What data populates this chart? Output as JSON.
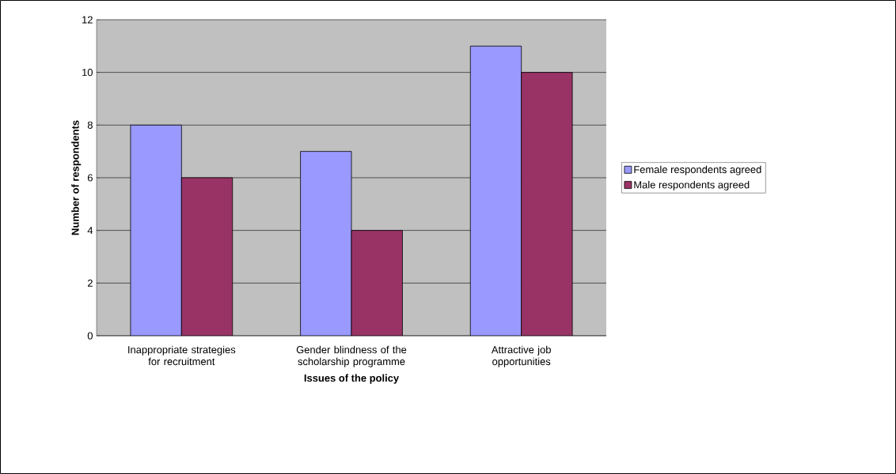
{
  "chart_data": {
    "type": "bar",
    "xlabel": "Issues of the policy",
    "ylabel": "Number of respondents",
    "categories": [
      "Inappropriate strategies for recruitment",
      "Gender blindness of the scholarship programme",
      "Attractive job opportunities"
    ],
    "series": [
      {
        "name": "Female respondents agreed",
        "color": "#9999ff",
        "values": [
          8,
          7,
          11
        ]
      },
      {
        "name": "Male respondents agreed",
        "color": "#993366",
        "values": [
          6,
          4,
          10
        ]
      }
    ],
    "ylim": [
      0,
      12
    ],
    "yticks": [
      0,
      2,
      4,
      6,
      8,
      10,
      12
    ],
    "grid": "y",
    "legend": "right"
  }
}
